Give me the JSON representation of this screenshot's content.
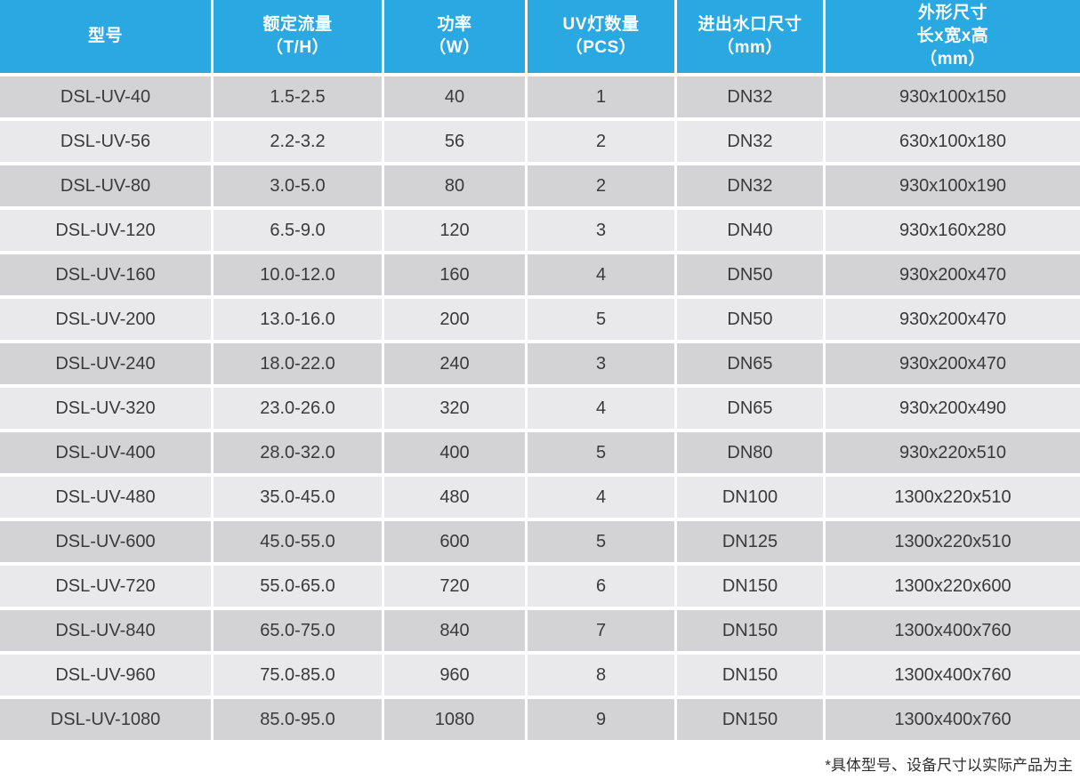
{
  "colors": {
    "header_bg": "#29a8e1",
    "header_text": "#ffffff",
    "row_dark": "#d3d3d5",
    "row_light": "#e9e9eb",
    "cell_text": "#3a3a3c",
    "note_text": "#2e2e2e",
    "page_bg": "#ffffff"
  },
  "table": {
    "columns": [
      {
        "id": "model",
        "lines": [
          "型号"
        ]
      },
      {
        "id": "rated-flow",
        "lines": [
          "额定流量",
          "（T/H）"
        ]
      },
      {
        "id": "power",
        "lines": [
          "功率",
          "（W）"
        ]
      },
      {
        "id": "uv-lamp-count",
        "lines": [
          "UV灯数量",
          "（PCS）"
        ]
      },
      {
        "id": "port-size",
        "lines": [
          "进出水口尺寸",
          "（mm）"
        ]
      },
      {
        "id": "overall-dimensions",
        "lines": [
          "外形尺寸",
          "长x宽x高",
          "（mm）"
        ]
      }
    ],
    "rows": [
      [
        "DSL-UV-40",
        "1.5-2.5",
        "40",
        "1",
        "DN32",
        "930x100x150"
      ],
      [
        "DSL-UV-56",
        "2.2-3.2",
        "56",
        "2",
        "DN32",
        "630x100x180"
      ],
      [
        "DSL-UV-80",
        "3.0-5.0",
        "80",
        "2",
        "DN32",
        "930x100x190"
      ],
      [
        "DSL-UV-120",
        "6.5-9.0",
        "120",
        "3",
        "DN40",
        "930x160x280"
      ],
      [
        "DSL-UV-160",
        "10.0-12.0",
        "160",
        "4",
        "DN50",
        "930x200x470"
      ],
      [
        "DSL-UV-200",
        "13.0-16.0",
        "200",
        "5",
        "DN50",
        "930x200x470"
      ],
      [
        "DSL-UV-240",
        "18.0-22.0",
        "240",
        "3",
        "DN65",
        "930x200x470"
      ],
      [
        "DSL-UV-320",
        "23.0-26.0",
        "320",
        "4",
        "DN65",
        "930x200x490"
      ],
      [
        "DSL-UV-400",
        "28.0-32.0",
        "400",
        "5",
        "DN80",
        "930x220x510"
      ],
      [
        "DSL-UV-480",
        "35.0-45.0",
        "480",
        "4",
        "DN100",
        "1300x220x510"
      ],
      [
        "DSL-UV-600",
        "45.0-55.0",
        "600",
        "5",
        "DN125",
        "1300x220x510"
      ],
      [
        "DSL-UV-720",
        "55.0-65.0",
        "720",
        "6",
        "DN150",
        "1300x220x600"
      ],
      [
        "DSL-UV-840",
        "65.0-75.0",
        "840",
        "7",
        "DN150",
        "1300x400x760"
      ],
      [
        "DSL-UV-960",
        "75.0-85.0",
        "960",
        "8",
        "DN150",
        "1300x400x760"
      ],
      [
        "DSL-UV-1080",
        "85.0-95.0",
        "1080",
        "9",
        "DN150",
        "1300x400x760"
      ]
    ]
  },
  "footnote": "*具体型号、设备尺寸以实际产品为主"
}
